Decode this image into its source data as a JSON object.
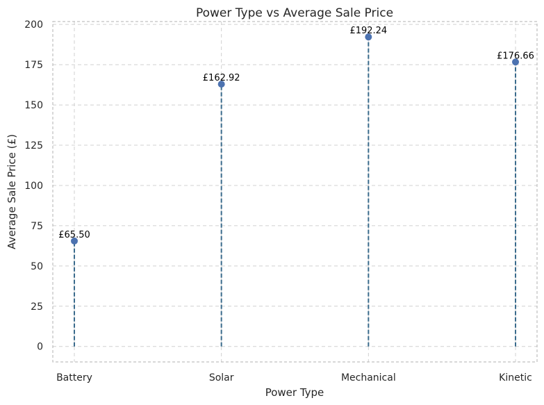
{
  "chart_data": {
    "type": "scatter",
    "style": "lollipop",
    "title": "Power Type vs Average Sale Price",
    "xlabel": "Power Type",
    "ylabel": "Average Sale Price (£)",
    "categories": [
      "Battery",
      "Solar",
      "Mechanical",
      "Kinetic"
    ],
    "values": [
      65.5,
      162.92,
      192.24,
      176.66
    ],
    "data_labels": [
      "£65.50",
      "£162.92",
      "£192.24",
      "£176.66"
    ],
    "ylim": [
      -9.6,
      201.8
    ],
    "yticks": [
      0,
      25,
      50,
      75,
      100,
      125,
      150,
      175,
      200
    ],
    "grid": true,
    "colors": {
      "marker": "#4c72b0",
      "stem": "#3a6b8c",
      "grid": "#d0d0d0",
      "frame": "#b0b0b0"
    }
  }
}
